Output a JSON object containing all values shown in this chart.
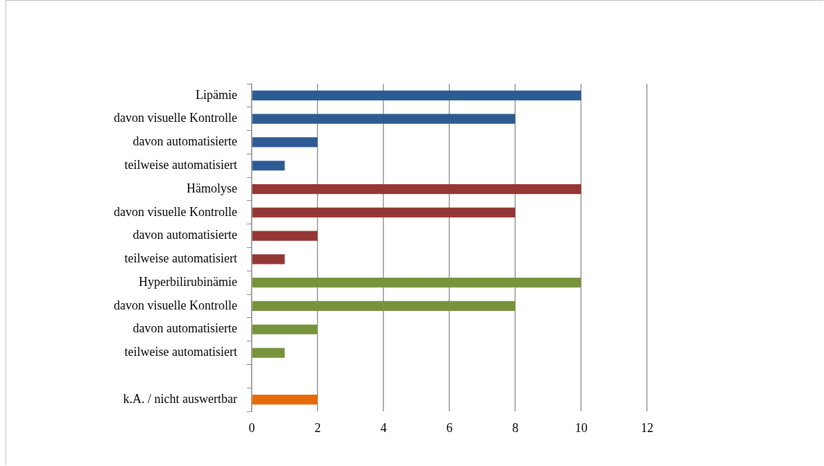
{
  "chart_data": {
    "type": "bar",
    "orientation": "horizontal",
    "categories": [
      "Lipämie",
      "davon visuelle Kontrolle",
      "davon automatisierte",
      "teilweise automatisiert",
      "Hämolyse",
      "davon visuelle Kontrolle",
      "davon automatisierte",
      "teilweise automatisiert",
      "Hyperbilirubinämie",
      "davon visuelle Kontrolle",
      "davon automatisierte",
      "teilweise automatisiert",
      null,
      "k.A. / nicht auswertbar"
    ],
    "values": [
      10,
      8,
      2,
      1,
      10,
      8,
      2,
      1,
      10,
      8,
      2,
      1,
      null,
      2
    ],
    "colors": [
      "#2e5b94",
      "#2e5b94",
      "#2e5b94",
      "#2e5b94",
      "#953735",
      "#953735",
      "#953735",
      "#953735",
      "#77933c",
      "#77933c",
      "#77933c",
      "#77933c",
      "#777777",
      "#e46c0a"
    ],
    "xlim": [
      0,
      12
    ],
    "xticks": [
      0,
      2,
      4,
      6,
      8,
      10,
      12
    ],
    "grid": "x",
    "legend": false
  }
}
